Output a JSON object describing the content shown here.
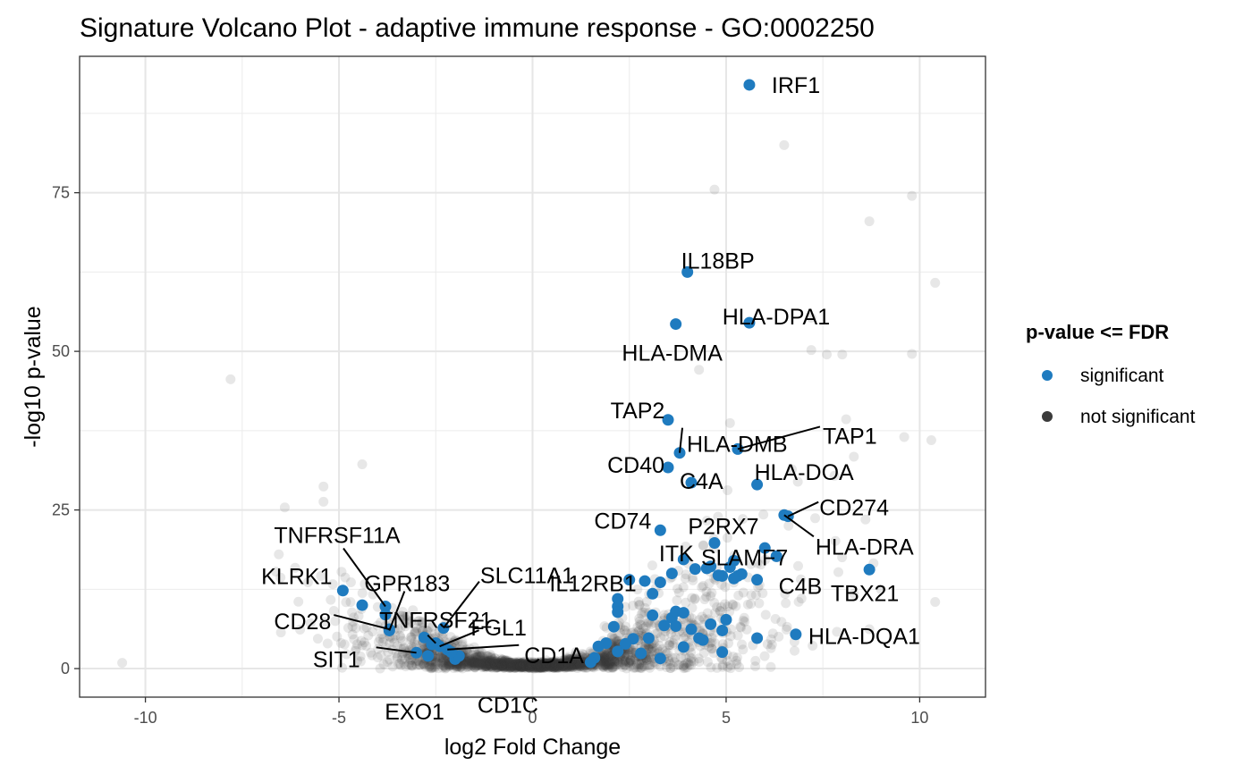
{
  "chart_data": {
    "type": "scatter",
    "title": "Signature Volcano Plot - adaptive immune response - GO:0002250",
    "xlabel": "log2 Fold Change",
    "ylabel": "-log10 p-value",
    "xlim": [
      -11.7,
      11.7
    ],
    "ylim": [
      -4.5,
      96.5
    ],
    "x_ticks": [
      -10,
      -5,
      0,
      5,
      10
    ],
    "y_ticks": [
      0,
      25,
      50,
      75
    ],
    "grid": true,
    "legend": {
      "title": "p-value <= FDR",
      "position": "right",
      "entries": [
        {
          "label": "significant",
          "color": "#1f7bbf"
        },
        {
          "label": "not significant",
          "color": "#3b3b3b"
        }
      ]
    },
    "series": [
      {
        "name": "significant",
        "color": "#1f7bbf",
        "points": [
          {
            "x": 5.6,
            "y": 92.0,
            "label": "IRF1"
          },
          {
            "x": 4.0,
            "y": 62.5,
            "label": "IL18BP"
          },
          {
            "x": 5.6,
            "y": 54.5,
            "label": "HLA-DPA1"
          },
          {
            "x": 3.7,
            "y": 54.3,
            "label": "HLA-DMA"
          },
          {
            "x": 3.5,
            "y": 39.2,
            "label": "TAP2"
          },
          {
            "x": 3.8,
            "y": 34.0,
            "label": "HLA-DMB"
          },
          {
            "x": 5.3,
            "y": 34.6,
            "label": "TAP1"
          },
          {
            "x": 3.5,
            "y": 31.7,
            "label": "CD40"
          },
          {
            "x": 4.1,
            "y": 29.3,
            "label": "C4A"
          },
          {
            "x": 5.8,
            "y": 29.0,
            "label": "HLA-DOA"
          },
          {
            "x": 3.3,
            "y": 21.8,
            "label": "CD74"
          },
          {
            "x": 4.7,
            "y": 19.8,
            "label": "P2RX7"
          },
          {
            "x": 6.6,
            "y": 24.0,
            "label": "CD274"
          },
          {
            "x": 6.5,
            "y": 24.2,
            "label": "HLA-DRA"
          },
          {
            "x": 2.5,
            "y": 14.0,
            "label": "IL12RB1"
          },
          {
            "x": 3.9,
            "y": 17.2,
            "label": "ITK"
          },
          {
            "x": 5.2,
            "y": 17.0,
            "label": "SLAMF7"
          },
          {
            "x": 5.8,
            "y": 14.0,
            "label": "C4B"
          },
          {
            "x": 8.7,
            "y": 15.6,
            "label": "TBX21"
          },
          {
            "x": 6.8,
            "y": 5.4,
            "label": "HLA-DQA1"
          },
          {
            "x": -4.9,
            "y": 12.3,
            "label": "KLRK1"
          },
          {
            "x": -3.8,
            "y": 9.8,
            "label": "TNFRSF11A"
          },
          {
            "x": -3.7,
            "y": 6.0,
            "label": "GPR183"
          },
          {
            "x": -3.7,
            "y": 6.2,
            "label": "CD28"
          },
          {
            "x": -2.5,
            "y": 4.0,
            "label": "TNFRSF21"
          },
          {
            "x": -2.3,
            "y": 6.4,
            "label": "SLC11A1"
          },
          {
            "x": -2.4,
            "y": 3.5,
            "label": "FGL1"
          },
          {
            "x": -2.2,
            "y": 3.0,
            "label": "CD1A"
          },
          {
            "x": -3.0,
            "y": 2.5,
            "label": "SIT1"
          },
          {
            "x": -2.7,
            "y": 2.0,
            "label": "EXO1"
          },
          {
            "x": -2.0,
            "y": 1.5,
            "label": "CD1C"
          },
          {
            "x": 6.0,
            "y": 19.0,
            "label": ""
          },
          {
            "x": 6.3,
            "y": 17.7,
            "label": ""
          },
          {
            "x": 5.1,
            "y": 16.0,
            "label": ""
          },
          {
            "x": 5.3,
            "y": 14.6,
            "label": ""
          },
          {
            "x": 5.4,
            "y": 14.9,
            "label": ""
          },
          {
            "x": 4.9,
            "y": 14.6,
            "label": ""
          },
          {
            "x": 4.5,
            "y": 15.8,
            "label": ""
          },
          {
            "x": 4.2,
            "y": 15.7,
            "label": ""
          },
          {
            "x": 4.8,
            "y": 14.7,
            "label": ""
          },
          {
            "x": 5.2,
            "y": 14.2,
            "label": ""
          },
          {
            "x": 4.6,
            "y": 16.1,
            "label": ""
          },
          {
            "x": 3.6,
            "y": 15.0,
            "label": ""
          },
          {
            "x": 3.3,
            "y": 13.6,
            "label": ""
          },
          {
            "x": 3.1,
            "y": 11.8,
            "label": ""
          },
          {
            "x": 2.9,
            "y": 13.8,
            "label": ""
          },
          {
            "x": 2.2,
            "y": 11.0,
            "label": ""
          },
          {
            "x": 2.2,
            "y": 9.8,
            "label": ""
          },
          {
            "x": 2.2,
            "y": 8.9,
            "label": ""
          },
          {
            "x": 3.1,
            "y": 8.4,
            "label": ""
          },
          {
            "x": 3.6,
            "y": 8.0,
            "label": ""
          },
          {
            "x": 3.7,
            "y": 9.0,
            "label": ""
          },
          {
            "x": 3.9,
            "y": 8.8,
            "label": ""
          },
          {
            "x": 5.0,
            "y": 7.7,
            "label": ""
          },
          {
            "x": 4.6,
            "y": 7.0,
            "label": ""
          },
          {
            "x": 4.9,
            "y": 6.0,
            "label": ""
          },
          {
            "x": 4.1,
            "y": 6.2,
            "label": ""
          },
          {
            "x": 3.7,
            "y": 6.7,
            "label": ""
          },
          {
            "x": 3.4,
            "y": 6.8,
            "label": ""
          },
          {
            "x": 5.8,
            "y": 4.8,
            "label": ""
          },
          {
            "x": 4.4,
            "y": 4.5,
            "label": ""
          },
          {
            "x": 4.9,
            "y": 2.6,
            "label": ""
          },
          {
            "x": 3.9,
            "y": 3.4,
            "label": ""
          },
          {
            "x": 3.0,
            "y": 4.8,
            "label": ""
          },
          {
            "x": 2.6,
            "y": 4.7,
            "label": ""
          },
          {
            "x": 2.2,
            "y": 2.7,
            "label": ""
          },
          {
            "x": 1.9,
            "y": 4.0,
            "label": ""
          },
          {
            "x": 1.6,
            "y": 1.7,
            "label": ""
          },
          {
            "x": 1.5,
            "y": 1.0,
            "label": ""
          },
          {
            "x": 2.1,
            "y": 6.6,
            "label": ""
          },
          {
            "x": 2.8,
            "y": 2.4,
            "label": ""
          },
          {
            "x": 3.3,
            "y": 1.6,
            "label": ""
          },
          {
            "x": 2.4,
            "y": 3.9,
            "label": ""
          },
          {
            "x": 1.7,
            "y": 3.5,
            "label": ""
          },
          {
            "x": 4.3,
            "y": 4.8,
            "label": ""
          },
          {
            "x": -4.4,
            "y": 10.0,
            "label": ""
          },
          {
            "x": -3.8,
            "y": 8.5,
            "label": ""
          },
          {
            "x": -2.8,
            "y": 4.9,
            "label": ""
          },
          {
            "x": -2.6,
            "y": 3.8,
            "label": ""
          },
          {
            "x": -1.9,
            "y": 2.0,
            "label": ""
          },
          {
            "x": -2.1,
            "y": 2.6,
            "label": ""
          }
        ]
      },
      {
        "name": "not significant",
        "color": "#3b3b3b",
        "points": [
          {
            "x": 6.5,
            "y": 82.5
          },
          {
            "x": 4.7,
            "y": 75.5
          },
          {
            "x": 9.8,
            "y": 74.5
          },
          {
            "x": 8.7,
            "y": 70.5
          },
          {
            "x": 10.4,
            "y": 60.8
          },
          {
            "x": 7.2,
            "y": 55.3
          },
          {
            "x": 7.2,
            "y": 50.2
          },
          {
            "x": 7.6,
            "y": 49.5
          },
          {
            "x": 8.0,
            "y": 49.5
          },
          {
            "x": 9.8,
            "y": 49.6
          },
          {
            "x": 4.3,
            "y": 47.1
          },
          {
            "x": -7.8,
            "y": 45.6
          },
          {
            "x": 9.6,
            "y": 36.5
          },
          {
            "x": 10.3,
            "y": 36.0
          },
          {
            "x": -4.4,
            "y": 32.2
          },
          {
            "x": 8.3,
            "y": 33.4
          },
          {
            "x": 7.8,
            "y": 30.4
          },
          {
            "x": -5.4,
            "y": 28.7
          },
          {
            "x": -5.4,
            "y": 26.3
          },
          {
            "x": -6.4,
            "y": 25.4
          },
          {
            "x": 8.6,
            "y": 23.5
          },
          {
            "x": -10.6,
            "y": 0.9
          },
          {
            "x": 10.4,
            "y": 10.5
          },
          {
            "x": 9.0,
            "y": 12.5
          },
          {
            "x": 8.3,
            "y": 11.8
          },
          {
            "x": -6.5,
            "y": 5.7
          },
          {
            "x": -5.8,
            "y": 13.6
          },
          {
            "x": 7.3,
            "y": 23.7
          },
          {
            "x": 5.1,
            "y": 38.7
          },
          {
            "x": 6.7,
            "y": 31.4
          },
          {
            "x": 8.1,
            "y": 39.3
          },
          {
            "x": 8.7,
            "y": 6.2
          },
          {
            "x": 7.9,
            "y": 15.2
          }
        ]
      }
    ],
    "background_noise_seed": 7
  }
}
